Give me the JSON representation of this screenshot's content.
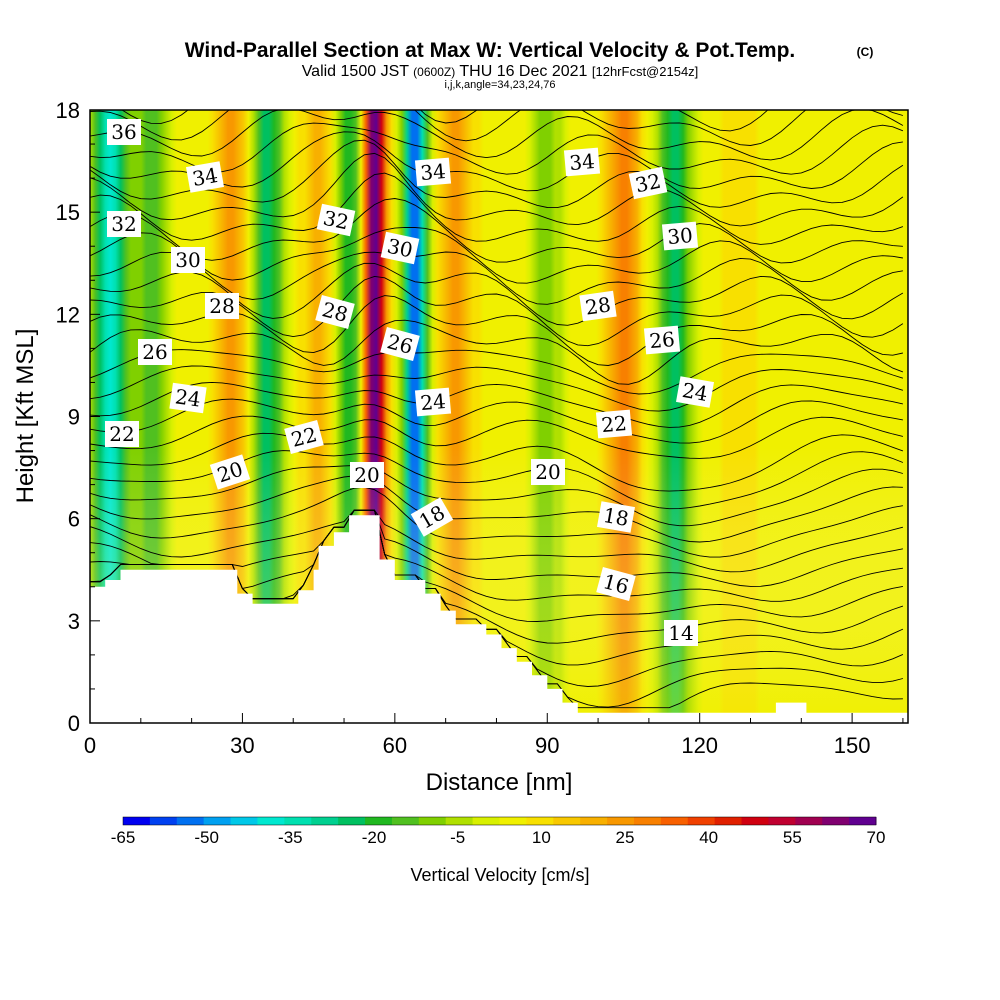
{
  "chart_data": {
    "type": "contour",
    "title": "Wind-Parallel Section at Max W: Vertical Velocity & Pot.Temp.",
    "copyright": "(C)",
    "subtitle_valid": "Valid 1500 JST",
    "subtitle_utc": "(0600Z)",
    "subtitle_date": "THU 16 Dec 2021",
    "subtitle_fcst": "[12hrFcst@2154z]",
    "subtitle_params": "i,j,k,angle=34,23,24,76",
    "xlabel": "Distance [nm]",
    "ylabel": "Height [Kft MSL]",
    "xlim": [
      0,
      161
    ],
    "ylim": [
      0,
      18
    ],
    "x_ticks": [
      "0",
      "30",
      "60",
      "90",
      "120",
      "150"
    ],
    "y_ticks": [
      "0",
      "3",
      "6",
      "9",
      "12",
      "15",
      "18"
    ],
    "colorbar": {
      "label": "Vertical Velocity [cm/s]",
      "tick_labels": [
        "-65",
        "-50",
        "-35",
        "-20",
        "-5",
        "10",
        "25",
        "40",
        "55",
        "70"
      ],
      "colors": [
        "#0000f0",
        "#0040f0",
        "#0070f0",
        "#00a0f0",
        "#00c8e8",
        "#00e8d0",
        "#00e0b0",
        "#00d090",
        "#00c060",
        "#20b820",
        "#50c020",
        "#80d000",
        "#b0e000",
        "#d8f000",
        "#f0f000",
        "#f8e000",
        "#f8c800",
        "#f8b000",
        "#f89800",
        "#f88000",
        "#f86000",
        "#f04000",
        "#e02000",
        "#d00010",
        "#c00030",
        "#a00050",
        "#800070",
        "#600090"
      ]
    },
    "theta_contour_labels": [
      "36",
      "34",
      "34",
      "34",
      "32",
      "32",
      "32",
      "30",
      "30",
      "30",
      "28",
      "28",
      "28",
      "26",
      "26",
      "26",
      "24",
      "24",
      "24",
      "22",
      "22",
      "22",
      "20",
      "20",
      "20",
      "18",
      "18",
      "16",
      "14"
    ],
    "w_features": [
      {
        "x": 4,
        "w": -40
      },
      {
        "x": 12,
        "w": -15
      },
      {
        "x": 28,
        "w": 25
      },
      {
        "x": 35,
        "w": -25
      },
      {
        "x": 45,
        "w": 20
      },
      {
        "x": 51,
        "w": -20
      },
      {
        "x": 56,
        "w": 70
      },
      {
        "x": 64,
        "w": -55
      },
      {
        "x": 72,
        "w": 25
      },
      {
        "x": 90,
        "w": -10
      },
      {
        "x": 105,
        "w": 30
      },
      {
        "x": 115,
        "w": -25
      },
      {
        "x": 128,
        "w": 12
      },
      {
        "x": 150,
        "w": 5
      }
    ],
    "terrain": [
      [
        0,
        4.0
      ],
      [
        3,
        4.0
      ],
      [
        3,
        4.2
      ],
      [
        6,
        4.2
      ],
      [
        6,
        4.5
      ],
      [
        29,
        4.5
      ],
      [
        29,
        3.8
      ],
      [
        32,
        3.8
      ],
      [
        32,
        3.5
      ],
      [
        41,
        3.5
      ],
      [
        41,
        3.9
      ],
      [
        44,
        3.9
      ],
      [
        44,
        4.5
      ],
      [
        45,
        4.5
      ],
      [
        45,
        5.2
      ],
      [
        48,
        5.2
      ],
      [
        48,
        5.6
      ],
      [
        51,
        5.6
      ],
      [
        51,
        6.1
      ],
      [
        54,
        6.1
      ],
      [
        54,
        6.1
      ],
      [
        57,
        6.1
      ],
      [
        57,
        4.8
      ],
      [
        60,
        4.8
      ],
      [
        60,
        4.2
      ],
      [
        66,
        4.2
      ],
      [
        66,
        3.8
      ],
      [
        69,
        3.8
      ],
      [
        69,
        3.3
      ],
      [
        72,
        3.3
      ],
      [
        72,
        2.9
      ],
      [
        78,
        2.9
      ],
      [
        78,
        2.6
      ],
      [
        81,
        2.6
      ],
      [
        81,
        2.2
      ],
      [
        84,
        2.2
      ],
      [
        84,
        1.8
      ],
      [
        87,
        1.8
      ],
      [
        87,
        1.4
      ],
      [
        90,
        1.4
      ],
      [
        90,
        1.0
      ],
      [
        93,
        1.0
      ],
      [
        93,
        0.6
      ],
      [
        96,
        0.6
      ],
      [
        96,
        0.3
      ],
      [
        135,
        0.3
      ],
      [
        135,
        0.6
      ],
      [
        141,
        0.6
      ],
      [
        141,
        0.3
      ],
      [
        161,
        0.3
      ]
    ]
  }
}
